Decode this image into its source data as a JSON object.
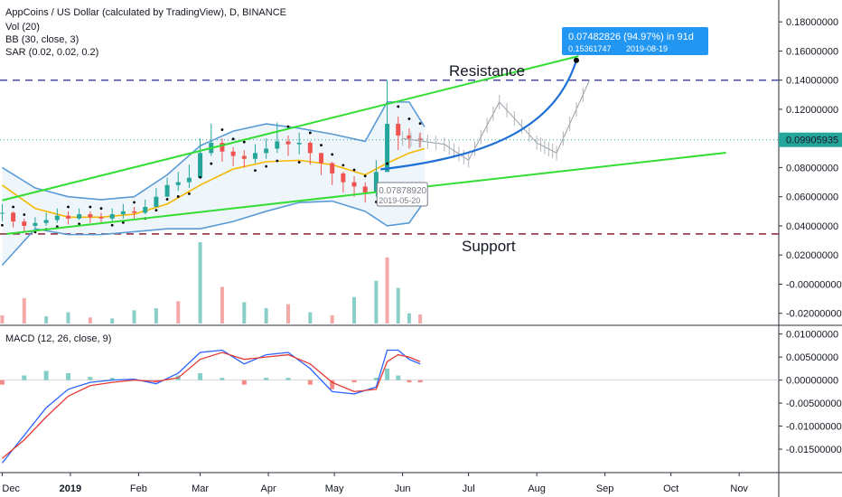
{
  "header": {
    "symbol_title": "AppCoins / US Dollar (calculated by TradingView), D, BINANCE",
    "indicators": [
      "Vol (20)",
      "BB (30, close, 3)",
      "SAR (0.02, 0.02, 0.2)"
    ],
    "macd_title": "MACD (12, 26, close, 9)"
  },
  "colors": {
    "up": "#26a69a",
    "down": "#ef5350",
    "bb": "#5b9bd5",
    "bb_mid": "#f5b800",
    "trend": "#33dd33",
    "resistance_level": "#4b4b9b",
    "support_level": "#8b2232",
    "forecast": "#1e6fd6",
    "callout": "#2196f3",
    "macd": "#2962ff",
    "signal": "#e53935"
  },
  "chart_data": [
    {
      "type": "line",
      "panel": "price",
      "x_axis": {
        "tick_labels": [
          "Dec",
          "2019",
          "Feb",
          "Mar",
          "Apr",
          "May",
          "Jun",
          "Jul",
          "Aug",
          "Sep",
          "Oct",
          "Nov"
        ],
        "tick_dates": [
          "2018-12-01",
          "2019-01-01",
          "2019-02-01",
          "2019-03-01",
          "2019-04-01",
          "2019-05-01",
          "2019-06-01",
          "2019-07-01",
          "2019-08-01",
          "2019-09-01",
          "2019-10-01",
          "2019-11-01"
        ],
        "range": [
          "2018-11-30",
          "2019-11-19"
        ]
      },
      "y_axis": {
        "range": [
          -0.027,
          0.195
        ],
        "tick_labels": [
          "0.18000000",
          "0.16000000",
          "0.14000000",
          "0.12000000",
          "0.10000000",
          "0.08000000",
          "0.06000000",
          "0.04000000",
          "0.02000000",
          "-0.00000000",
          "-0.02000000"
        ],
        "tick_values": [
          0.18,
          0.16,
          0.14,
          0.12,
          0.1,
          0.08,
          0.06,
          0.04,
          0.02,
          0.0,
          -0.02
        ]
      },
      "last_price_label": "0.09905935",
      "last_price": 0.09905935,
      "horizontal_levels": [
        {
          "name": "resistance_level",
          "value": 0.14
        },
        {
          "name": "support_level",
          "value": 0.0345
        }
      ],
      "trend_lines": [
        {
          "name": "resistance-trendline",
          "points": [
            [
              "2018-12-01",
              0.0575
            ],
            [
              "2019-08-20",
              0.1565
            ]
          ]
        },
        {
          "name": "support-trendline",
          "points": [
            [
              "2018-12-03",
              0.0345
            ],
            [
              "2019-10-26",
              0.0902
            ]
          ]
        }
      ],
      "price_series": {
        "dates": [
          "2018-12-01",
          "2018-12-06",
          "2018-12-11",
          "2018-12-16",
          "2018-12-21",
          "2018-12-26",
          "2018-12-31",
          "2019-01-05",
          "2019-01-10",
          "2019-01-15",
          "2019-01-20",
          "2019-01-25",
          "2019-01-30",
          "2019-02-04",
          "2019-02-09",
          "2019-02-14",
          "2019-02-19",
          "2019-02-24",
          "2019-03-01",
          "2019-03-06",
          "2019-03-11",
          "2019-03-16",
          "2019-03-21",
          "2019-03-26",
          "2019-03-31",
          "2019-04-05",
          "2019-04-10",
          "2019-04-15",
          "2019-04-20",
          "2019-04-25",
          "2019-04-30",
          "2019-05-05",
          "2019-05-10",
          "2019-05-15",
          "2019-05-20",
          "2019-05-25",
          "2019-05-30",
          "2019-06-04",
          "2019-06-09"
        ],
        "close": [
          0.049,
          0.043,
          0.04,
          0.042,
          0.044,
          0.047,
          0.045,
          0.048,
          0.046,
          0.045,
          0.048,
          0.05,
          0.049,
          0.053,
          0.06,
          0.068,
          0.07,
          0.073,
          0.09,
          0.097,
          0.091,
          0.088,
          0.086,
          0.09,
          0.093,
          0.098,
          0.096,
          0.097,
          0.09,
          0.083,
          0.076,
          0.07,
          0.067,
          0.063,
          0.077,
          0.11,
          0.102,
          0.1,
          0.099
        ],
        "high": [
          0.055,
          0.05,
          0.045,
          0.046,
          0.049,
          0.052,
          0.05,
          0.052,
          0.05,
          0.049,
          0.052,
          0.055,
          0.053,
          0.058,
          0.066,
          0.073,
          0.077,
          0.082,
          0.1,
          0.11,
          0.1,
          0.094,
          0.092,
          0.096,
          0.1,
          0.111,
          0.102,
          0.104,
          0.098,
          0.09,
          0.084,
          0.077,
          0.074,
          0.07,
          0.085,
          0.14,
          0.115,
          0.107,
          0.104
        ],
        "low": [
          0.043,
          0.039,
          0.036,
          0.038,
          0.04,
          0.042,
          0.041,
          0.044,
          0.042,
          0.041,
          0.043,
          0.045,
          0.045,
          0.048,
          0.054,
          0.062,
          0.064,
          0.066,
          0.078,
          0.088,
          0.084,
          0.081,
          0.08,
          0.083,
          0.086,
          0.09,
          0.088,
          0.089,
          0.082,
          0.075,
          0.068,
          0.063,
          0.06,
          0.056,
          0.06,
          0.088,
          0.092,
          0.093,
          0.094
        ]
      },
      "bollinger": {
        "dates": [
          "2018-12-01",
          "2018-12-16",
          "2018-12-31",
          "2019-01-15",
          "2019-01-30",
          "2019-02-14",
          "2019-03-01",
          "2019-03-16",
          "2019-03-31",
          "2019-04-15",
          "2019-04-30",
          "2019-05-15",
          "2019-05-25",
          "2019-06-04",
          "2019-06-11"
        ],
        "upper": [
          0.08,
          0.066,
          0.06,
          0.058,
          0.06,
          0.075,
          0.095,
          0.105,
          0.11,
          0.107,
          0.103,
          0.098,
          0.125,
          0.125,
          0.108
        ],
        "middle": [
          0.068,
          0.052,
          0.046,
          0.046,
          0.048,
          0.055,
          0.068,
          0.079,
          0.084,
          0.085,
          0.082,
          0.075,
          0.083,
          0.09,
          0.093
        ],
        "lower": [
          0.013,
          0.038,
          0.034,
          0.034,
          0.036,
          0.038,
          0.038,
          0.043,
          0.05,
          0.056,
          0.057,
          0.05,
          0.04,
          0.042,
          0.057
        ]
      },
      "forecast": {
        "curve": [
          [
            "2019-05-22",
            0.0788
          ],
          [
            "2019-07-15",
            0.088
          ],
          [
            "2019-08-10",
            0.111
          ],
          [
            "2019-08-19",
            0.1536
          ]
        ],
        "ghost_path": [
          [
            "2019-06-01",
            0.1
          ],
          [
            "2019-06-20",
            0.096
          ],
          [
            "2019-07-01",
            0.085
          ],
          [
            "2019-07-15",
            0.125
          ],
          [
            "2019-08-01",
            0.097
          ],
          [
            "2019-08-10",
            0.09
          ],
          [
            "2019-08-25",
            0.14
          ]
        ]
      },
      "annotations": {
        "resistance_label": "Resistance",
        "support_label": "Support",
        "start_price": "0.07878920",
        "start_date": "2019-05-20",
        "target_change": "0.07482826 (94.97%) in 91d",
        "target_price": "0.15361747",
        "target_date": "2019-08-19"
      }
    },
    {
      "type": "bar",
      "panel": "volume",
      "dates": [
        "2018-12-01",
        "2018-12-11",
        "2018-12-21",
        "2018-12-31",
        "2019-01-10",
        "2019-01-20",
        "2019-01-30",
        "2019-02-09",
        "2019-02-19",
        "2019-03-01",
        "2019-03-11",
        "2019-03-21",
        "2019-03-31",
        "2019-04-10",
        "2019-04-20",
        "2019-04-30",
        "2019-05-10",
        "2019-05-20",
        "2019-05-25",
        "2019-05-30",
        "2019-06-04",
        "2019-06-09"
      ],
      "values": [
        0.8,
        2.5,
        0.7,
        1.1,
        0.6,
        0.5,
        1.3,
        1.5,
        2.2,
        8.0,
        3.6,
        2.1,
        1.5,
        1.9,
        1.1,
        0.8,
        2.6,
        4.2,
        6.5,
        3.5,
        1.0,
        0.9
      ],
      "direction": [
        "down",
        "down",
        "up",
        "up",
        "down",
        "up",
        "up",
        "up",
        "down",
        "up",
        "down",
        "up",
        "up",
        "down",
        "up",
        "down",
        "up",
        "up",
        "down",
        "up",
        "up",
        "down"
      ]
    },
    {
      "type": "line",
      "panel": "macd",
      "title": "MACD (12, 26, close, 9)",
      "y_axis": {
        "range": [
          -0.0195,
          0.0115
        ],
        "tick_labels": [
          "0.01000000",
          "0.00500000",
          "0.00000000",
          "-0.00500000",
          "-0.01000000",
          "-0.01500000"
        ],
        "tick_values": [
          0.01,
          0.005,
          0.0,
          -0.005,
          -0.01,
          -0.015
        ]
      },
      "x": [
        "2018-12-01",
        "2018-12-11",
        "2018-12-21",
        "2018-12-31",
        "2019-01-10",
        "2019-01-20",
        "2019-01-30",
        "2019-02-09",
        "2019-02-19",
        "2019-03-01",
        "2019-03-11",
        "2019-03-21",
        "2019-03-31",
        "2019-04-10",
        "2019-04-20",
        "2019-04-30",
        "2019-05-10",
        "2019-05-20",
        "2019-05-25",
        "2019-05-30",
        "2019-06-04",
        "2019-06-09"
      ],
      "series": [
        {
          "name": "MACD",
          "values": [
            -0.018,
            -0.012,
            -0.006,
            -0.002,
            -0.0005,
            0.0,
            0.0002,
            -0.0008,
            0.0015,
            0.006,
            0.0065,
            0.0035,
            0.0055,
            0.006,
            0.0025,
            -0.0025,
            -0.003,
            -0.0015,
            0.0065,
            0.0065,
            0.0045,
            0.0035
          ]
        },
        {
          "name": "Signal",
          "values": [
            -0.017,
            -0.013,
            -0.008,
            -0.0035,
            -0.0012,
            -0.0005,
            0.0,
            -0.0003,
            0.0005,
            0.0045,
            0.006,
            0.0045,
            0.005,
            0.0055,
            0.0035,
            -0.0005,
            -0.0025,
            -0.002,
            0.004,
            0.0055,
            0.005,
            0.004
          ]
        }
      ],
      "histogram": [
        -0.001,
        0.001,
        0.002,
        0.0015,
        0.0007,
        0.0005,
        0.0002,
        -0.0005,
        0.001,
        0.0015,
        0.0005,
        -0.001,
        0.0005,
        0.0005,
        -0.001,
        -0.002,
        -0.0005,
        0.0005,
        0.0025,
        0.001,
        -0.0005,
        -0.0005
      ]
    }
  ]
}
